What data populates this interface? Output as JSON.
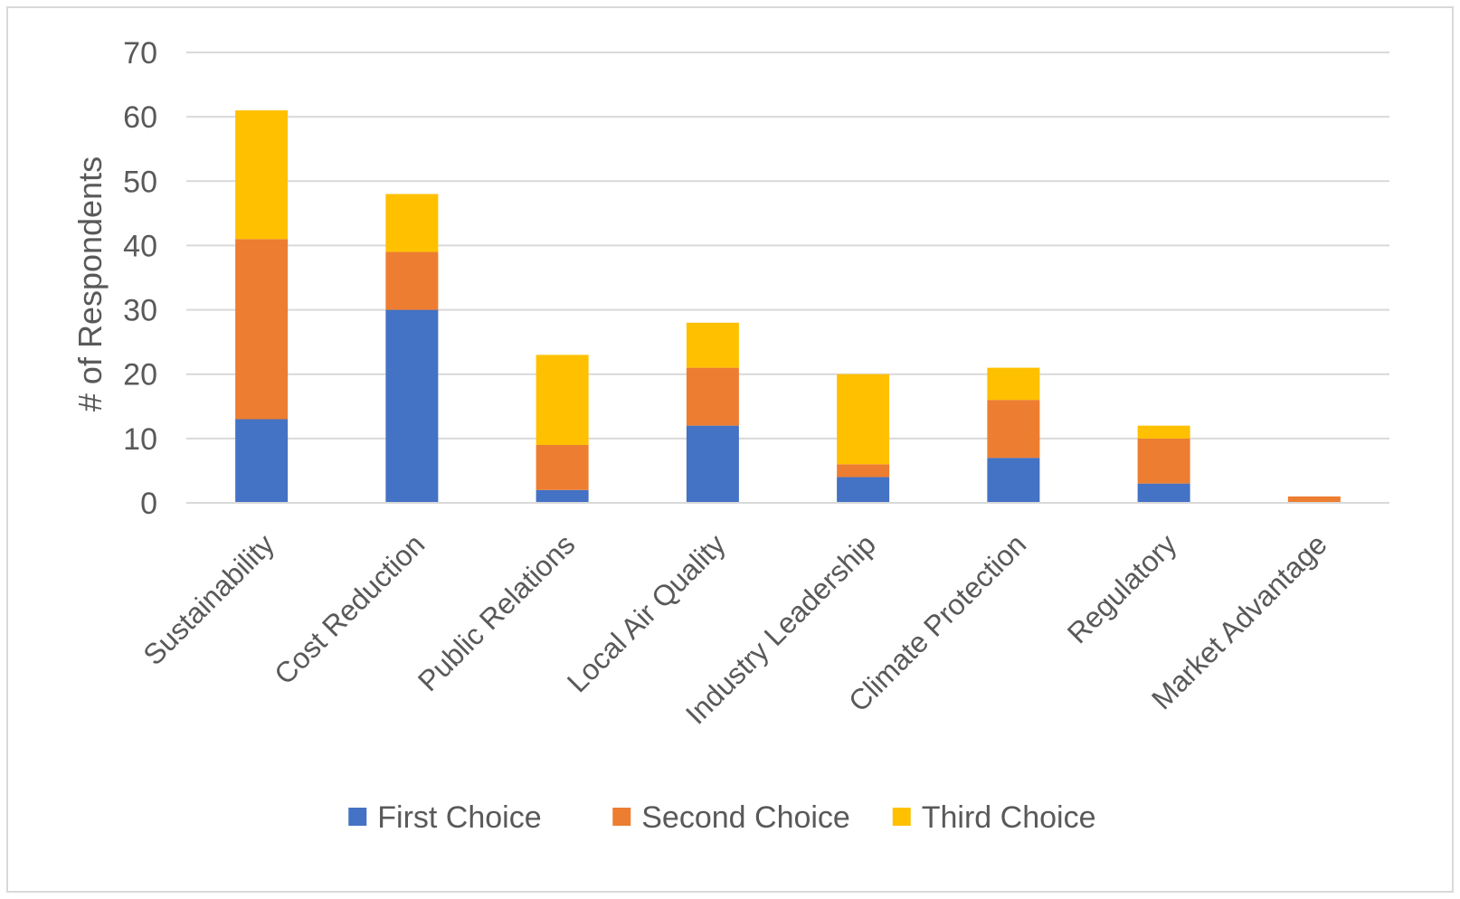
{
  "chart_data": {
    "type": "bar",
    "stacked": true,
    "title": "",
    "xlabel": "",
    "ylabel": "# of Respondents",
    "ylim": [
      0,
      70
    ],
    "yticks": [
      0,
      10,
      20,
      30,
      40,
      50,
      60,
      70
    ],
    "grid": true,
    "legend_position": "bottom",
    "categories": [
      "Sustainability",
      "Cost Reduction",
      "Public Relations",
      "Local Air Quality",
      "Industry Leadership",
      "Climate Protection",
      "Regulatory",
      "Market Advantage"
    ],
    "series": [
      {
        "name": "First Choice",
        "color": "#4472c4",
        "values": [
          13,
          30,
          2,
          12,
          4,
          7,
          3,
          0
        ]
      },
      {
        "name": "Second Choice",
        "color": "#ed7d31",
        "values": [
          28,
          9,
          7,
          9,
          2,
          9,
          7,
          1
        ]
      },
      {
        "name": "Third Choice",
        "color": "#ffc000",
        "values": [
          20,
          9,
          14,
          7,
          14,
          5,
          2,
          0
        ]
      }
    ]
  }
}
